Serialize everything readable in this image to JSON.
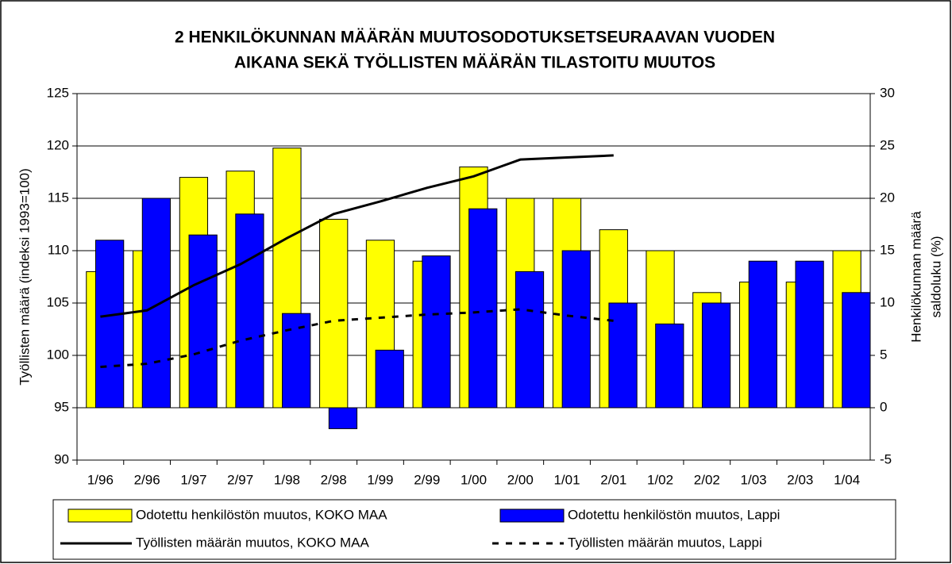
{
  "chart_data": {
    "type": "combo",
    "title_lines": [
      "2 HENKILÖKUNNAN MÄÄRÄN MUUTOSODOTUKSETSEURAAVAN VUODEN",
      "AIKANA SEKÄ TYÖLLISTEN MÄÄRÄN TILASTOITU MUUTOS"
    ],
    "ylabel": "Työllisten määrä (indeksi 1993=100)",
    "y2label_lines": [
      "Henkilökunnan määrä",
      "saldoluku (%)"
    ],
    "categories": [
      "1/96",
      "2/96",
      "1/97",
      "2/97",
      "1/98",
      "2/98",
      "1/99",
      "2/99",
      "1/00",
      "2/00",
      "1/01",
      "2/01",
      "1/02",
      "2/02",
      "1/03",
      "2/03",
      "1/04"
    ],
    "ylim": [
      90,
      125
    ],
    "yticks": [
      90,
      95,
      100,
      105,
      110,
      115,
      120,
      125
    ],
    "y2lim": [
      -5,
      30
    ],
    "y2ticks": [
      -5,
      0,
      5,
      10,
      15,
      20,
      25,
      30
    ],
    "grid": true,
    "series": [
      {
        "name": "Odotettu henkilöstön muutos, KOKO MAA",
        "kind": "bar",
        "axis": "y2",
        "color": "#ffff00",
        "values": [
          13,
          15,
          22,
          22.6,
          24.8,
          18,
          16,
          14,
          23,
          20,
          20,
          17,
          15,
          11,
          12,
          12,
          15
        ]
      },
      {
        "name": "Odotettu henkilöstön muutos, Lappi",
        "kind": "bar",
        "axis": "y2",
        "color": "#0000ff",
        "values": [
          16,
          20,
          16.5,
          18.5,
          9,
          -2,
          5.5,
          14.5,
          19,
          13,
          15,
          10,
          8,
          10,
          14,
          14,
          11
        ]
      },
      {
        "name": "Työllisten määrän muutos, KOKO MAA",
        "kind": "line",
        "color": "#000000",
        "dash": "solid",
        "values": [
          103.7,
          104.3,
          106.7,
          108.7,
          111.2,
          113.5,
          114.7,
          116,
          117.1,
          118.7,
          118.9,
          119.1,
          null,
          null,
          null,
          null,
          null
        ]
      },
      {
        "name": "Työllisten määrän muutos, Lappi",
        "kind": "line",
        "color": "#000000",
        "dash": "dashed",
        "values": [
          98.9,
          99.2,
          100.1,
          101.4,
          102.4,
          103.3,
          103.6,
          103.9,
          104.1,
          104.4,
          103.8,
          103.3,
          null,
          null,
          null,
          null,
          null
        ]
      }
    ]
  }
}
